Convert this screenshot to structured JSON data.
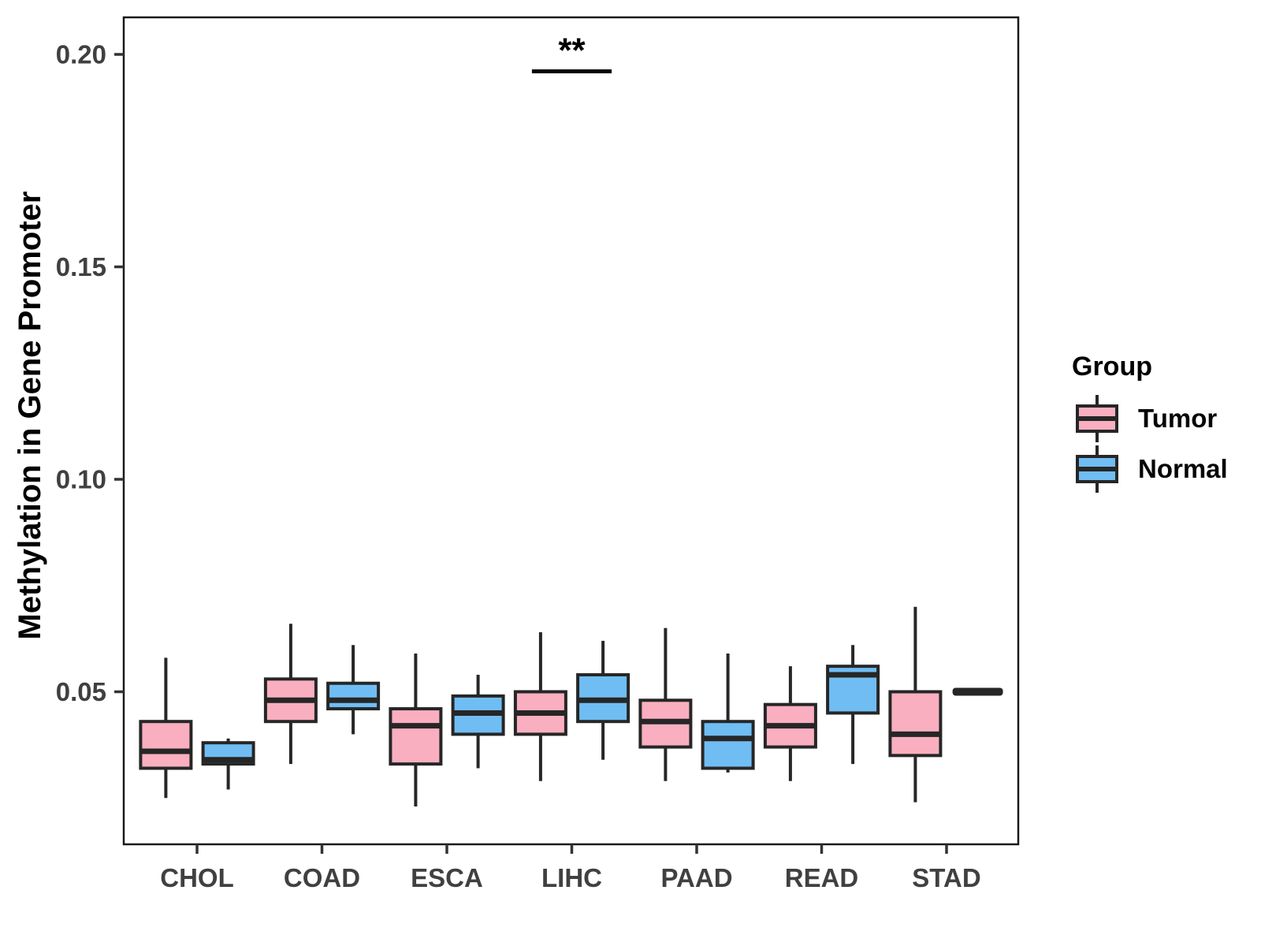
{
  "chart_data": {
    "type": "boxplot",
    "title": "",
    "ylabel": "Methylation in Gene Promoter",
    "xlabel": "",
    "categories": [
      "CHOL",
      "COAD",
      "ESCA",
      "LIHC",
      "PAAD",
      "READ",
      "STAD"
    ],
    "yticks": [
      0.05,
      0.1,
      0.15,
      0.2
    ],
    "ytick_labels": [
      "0.05",
      "0.10",
      "0.15",
      "0.20"
    ],
    "ylim": [
      0.014,
      0.209
    ],
    "grid": false,
    "legend_position": "right",
    "groups": [
      {
        "name": "Tumor",
        "color": "#F9AFC0"
      },
      {
        "name": "Normal",
        "color": "#70BDF3"
      }
    ],
    "series": [
      {
        "name": "Tumor",
        "color": "#F9AFC0",
        "boxes": [
          {
            "category": "CHOL",
            "low": 0.025,
            "q1": 0.032,
            "median": 0.036,
            "q3": 0.043,
            "high": 0.058
          },
          {
            "category": "COAD",
            "low": 0.033,
            "q1": 0.043,
            "median": 0.048,
            "q3": 0.053,
            "high": 0.066
          },
          {
            "category": "ESCA",
            "low": 0.023,
            "q1": 0.033,
            "median": 0.042,
            "q3": 0.046,
            "high": 0.059
          },
          {
            "category": "LIHC",
            "low": 0.029,
            "q1": 0.04,
            "median": 0.045,
            "q3": 0.05,
            "high": 0.064
          },
          {
            "category": "PAAD",
            "low": 0.029,
            "q1": 0.037,
            "median": 0.043,
            "q3": 0.048,
            "high": 0.065
          },
          {
            "category": "READ",
            "low": 0.029,
            "q1": 0.037,
            "median": 0.042,
            "q3": 0.047,
            "high": 0.056
          },
          {
            "category": "STAD",
            "low": 0.024,
            "q1": 0.035,
            "median": 0.04,
            "q3": 0.05,
            "high": 0.07
          }
        ]
      },
      {
        "name": "Normal",
        "color": "#70BDF3",
        "boxes": [
          {
            "category": "CHOL",
            "low": 0.027,
            "q1": 0.033,
            "median": 0.034,
            "q3": 0.038,
            "high": 0.039
          },
          {
            "category": "COAD",
            "low": 0.04,
            "q1": 0.046,
            "median": 0.048,
            "q3": 0.052,
            "high": 0.061
          },
          {
            "category": "ESCA",
            "low": 0.032,
            "q1": 0.04,
            "median": 0.045,
            "q3": 0.049,
            "high": 0.054
          },
          {
            "category": "LIHC",
            "low": 0.034,
            "q1": 0.043,
            "median": 0.048,
            "q3": 0.054,
            "high": 0.062
          },
          {
            "category": "PAAD",
            "low": 0.031,
            "q1": 0.032,
            "median": 0.039,
            "q3": 0.043,
            "high": 0.059
          },
          {
            "category": "READ",
            "low": 0.033,
            "q1": 0.045,
            "median": 0.054,
            "q3": 0.056,
            "high": 0.061
          },
          {
            "category": "STAD",
            "low": 0.05,
            "q1": 0.05,
            "median": 0.05,
            "q3": 0.05,
            "high": 0.05
          }
        ]
      }
    ],
    "annotations": [
      {
        "type": "significance",
        "label": "**",
        "category": "LIHC",
        "bar_y": 0.196,
        "between": [
          "Tumor",
          "Normal"
        ]
      }
    ],
    "style": {
      "box_stroke": "#262626",
      "panel_border": "#1A1A1A",
      "tick_color": "#333333",
      "tick_label_color": "#404040",
      "background": "#FFFFFF"
    }
  },
  "legend": {
    "title": "Group",
    "entries": [
      {
        "label": "Tumor",
        "color": "#F9AFC0"
      },
      {
        "label": "Normal",
        "color": "#70BDF3"
      }
    ]
  }
}
